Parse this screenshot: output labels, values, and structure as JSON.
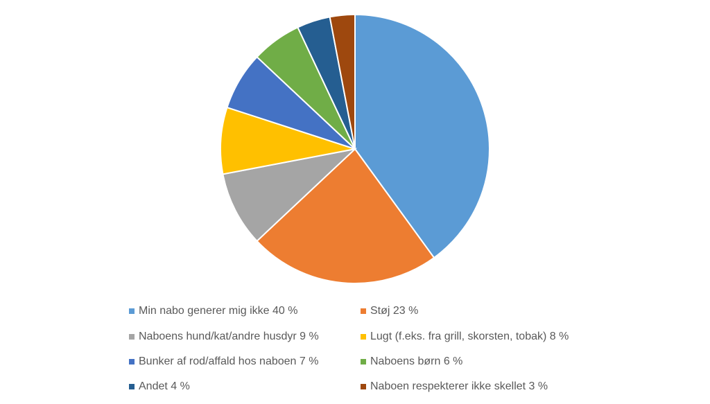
{
  "chart_data": {
    "type": "pie",
    "categories": [
      "Min nabo generer mig ikke 40 %",
      "Støj 23 %",
      "Naboens hund/kat/andre husdyr 9 %",
      "Lugt (f.eks. fra grill, skorsten, tobak) 8 %",
      "Bunker af rod/affald hos naboen 7 %",
      "Naboens børn 6 %",
      "Andet 4 %",
      "Naboen respekterer ikke skellet 3 %"
    ],
    "values": [
      40,
      23,
      9,
      8,
      7,
      6,
      4,
      3
    ],
    "colors": [
      "#5b9bd5",
      "#ed7d31",
      "#a5a5a5",
      "#ffc000",
      "#4472c4",
      "#70ad47",
      "#255e91",
      "#9e480e"
    ],
    "legend": "bottom"
  }
}
